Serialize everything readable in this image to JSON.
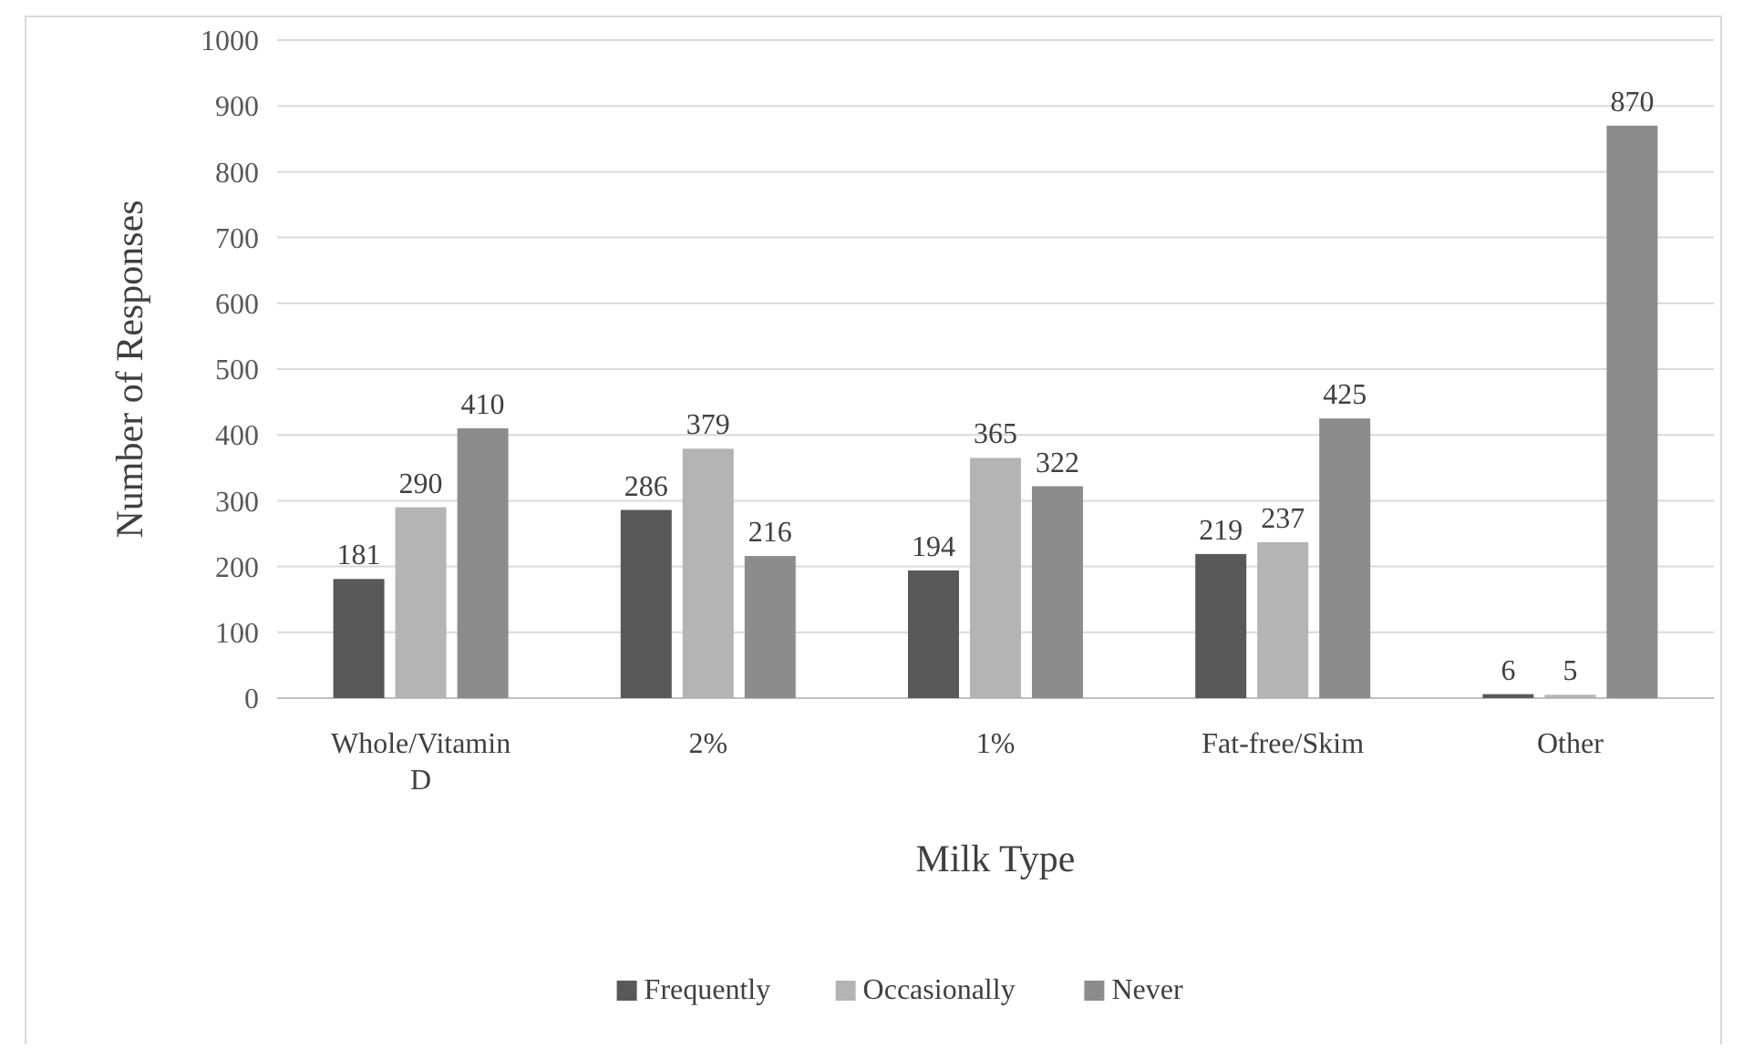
{
  "chart_data": {
    "type": "bar",
    "xlabel": "Milk Type",
    "ylabel": "Number of Responses",
    "categories": [
      "Whole/Vitamin D",
      "2%",
      "1%",
      "Fat-free/Skim",
      "Other"
    ],
    "series": [
      {
        "name": "Frequently",
        "color": "#595959",
        "values": [
          181,
          286,
          194,
          219,
          6
        ]
      },
      {
        "name": "Occasionally",
        "color": "#b4b4b4",
        "values": [
          290,
          379,
          365,
          237,
          5
        ]
      },
      {
        "name": "Never",
        "color": "#8c8c8c",
        "values": [
          410,
          216,
          322,
          425,
          870
        ]
      }
    ],
    "ylim": [
      0,
      1000
    ],
    "yticks": [
      0,
      100,
      200,
      300,
      400,
      500,
      600,
      700,
      800,
      900,
      1000
    ],
    "grid": "y",
    "legend": "bottom",
    "data_labels": true
  }
}
